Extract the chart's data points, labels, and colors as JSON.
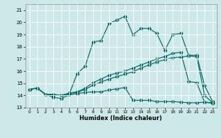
{
  "xlabel": "Humidex (Indice chaleur)",
  "background_color": "#cce8e8",
  "grid_color": "#ffffff",
  "line_color": "#006868",
  "xlim": [
    -0.5,
    23.5
  ],
  "ylim": [
    13,
    21.5
  ],
  "yticks": [
    13,
    14,
    15,
    16,
    17,
    18,
    19,
    20,
    21
  ],
  "xticks": [
    0,
    1,
    2,
    3,
    4,
    5,
    6,
    7,
    8,
    9,
    10,
    11,
    12,
    13,
    14,
    15,
    16,
    17,
    18,
    19,
    20,
    21,
    22,
    23
  ],
  "line1_x": [
    0,
    1,
    2,
    3,
    4,
    5,
    6,
    7,
    8,
    9,
    10,
    11,
    12,
    13,
    14,
    15,
    16,
    17,
    18,
    19,
    20,
    21,
    22,
    23
  ],
  "line1_y": [
    14.5,
    14.6,
    14.1,
    14.1,
    14.0,
    14.1,
    15.8,
    16.4,
    18.4,
    18.5,
    19.9,
    20.2,
    20.5,
    19.0,
    19.5,
    19.5,
    19.1,
    17.7,
    19.0,
    19.1,
    17.3,
    17.3,
    14.8,
    13.5
  ],
  "line2_x": [
    0,
    1,
    2,
    3,
    4,
    5,
    6,
    7,
    8,
    9,
    10,
    11,
    12,
    13,
    14,
    15,
    16,
    17,
    18,
    19,
    20,
    21,
    22,
    23
  ],
  "line2_y": [
    14.5,
    14.6,
    14.1,
    13.85,
    13.75,
    14.05,
    14.15,
    14.25,
    14.3,
    14.3,
    14.45,
    14.55,
    14.65,
    13.6,
    13.6,
    13.6,
    13.5,
    13.5,
    13.5,
    13.45,
    13.4,
    13.4,
    13.45,
    13.35
  ],
  "line3_x": [
    0,
    1,
    2,
    3,
    4,
    5,
    6,
    7,
    8,
    9,
    10,
    11,
    12,
    13,
    14,
    15,
    16,
    17,
    18,
    19,
    20,
    21,
    22,
    23
  ],
  "line3_y": [
    14.5,
    14.6,
    14.1,
    14.0,
    14.0,
    14.15,
    14.25,
    14.5,
    14.85,
    15.1,
    15.35,
    15.55,
    15.75,
    15.95,
    16.25,
    16.5,
    16.75,
    16.95,
    17.1,
    17.15,
    17.25,
    17.2,
    14.0,
    13.4
  ],
  "line4_x": [
    0,
    1,
    2,
    3,
    4,
    5,
    6,
    7,
    8,
    9,
    10,
    11,
    12,
    13,
    14,
    15,
    16,
    17,
    18,
    19,
    20,
    21,
    22,
    23
  ],
  "line4_y": [
    14.5,
    14.6,
    14.1,
    14.0,
    14.0,
    14.2,
    14.3,
    14.6,
    15.05,
    15.35,
    15.65,
    15.85,
    16.0,
    16.25,
    16.5,
    16.75,
    17.0,
    17.2,
    17.45,
    17.55,
    15.15,
    15.05,
    13.45,
    13.4
  ]
}
